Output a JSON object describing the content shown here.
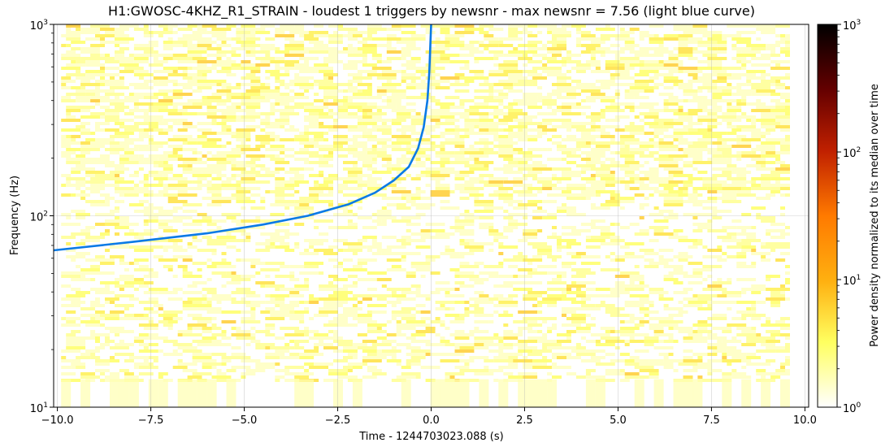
{
  "chart_data": {
    "type": "heatmap",
    "title": "H1:GWOSC-4KHZ_R1_STRAIN - loudest 1 triggers by newsnr - max newsnr = 7.56 (light blue curve)",
    "xlabel": "Time - 1244703023.088 (s)",
    "ylabel": "Frequency (Hz)",
    "xlim": [
      -10.1,
      10.1
    ],
    "ylim": [
      10,
      1000
    ],
    "yscale": "log",
    "data_time_range": [
      -9.9,
      9.6
    ],
    "x_ticks": [
      {
        "value": -10.0,
        "label": "−10.0"
      },
      {
        "value": -7.5,
        "label": "−7.5"
      },
      {
        "value": -5.0,
        "label": "−5.0"
      },
      {
        "value": -2.5,
        "label": "−2.5"
      },
      {
        "value": 0.0,
        "label": "0.0"
      },
      {
        "value": 2.5,
        "label": "2.5"
      },
      {
        "value": 5.0,
        "label": "5.0"
      },
      {
        "value": 7.5,
        "label": "7.5"
      },
      {
        "value": 10.0,
        "label": "10.0"
      }
    ],
    "y_ticks": [
      {
        "value": 10,
        "label": "10",
        "exp": "1"
      },
      {
        "value": 100,
        "label": "10",
        "exp": "2"
      },
      {
        "value": 1000,
        "label": "10",
        "exp": "3"
      }
    ],
    "grid": true,
    "colorbar": {
      "label": "Power density normalized to its median over time",
      "scale": "log",
      "range": [
        1,
        1000
      ],
      "colormap": "afmhot_r",
      "ticks": [
        {
          "value": 1,
          "label": "10",
          "exp": "0"
        },
        {
          "value": 10,
          "label": "10",
          "exp": "1"
        },
        {
          "value": 100,
          "label": "10",
          "exp": "2"
        },
        {
          "value": 1000,
          "label": "10",
          "exp": "3"
        }
      ]
    },
    "trigger_curve": {
      "color": "#0a7ae6",
      "x": [
        -10.1,
        -8.0,
        -6.0,
        -4.5,
        -3.3,
        -2.2,
        -1.5,
        -1.0,
        -0.6,
        -0.35,
        -0.2,
        -0.1,
        -0.05,
        -0.02,
        0.0
      ],
      "y": [
        66,
        73,
        81,
        90,
        100,
        115,
        132,
        153,
        180,
        225,
        290,
        400,
        560,
        800,
        1000
      ]
    }
  }
}
